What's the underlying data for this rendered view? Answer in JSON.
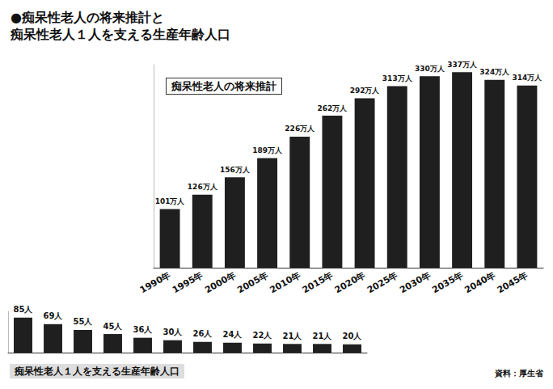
{
  "chart_data": {
    "type": "bar",
    "title": "●痴呆性老人の将来推計と\n痴呆性老人１人を支える生産年齢人口",
    "categories": [
      "1990年",
      "1995年",
      "2000年",
      "2005年",
      "2010年",
      "2015年",
      "2020年",
      "2025年",
      "2030年",
      "2035年",
      "2040年",
      "2045年"
    ],
    "series": [
      {
        "name": "痴呆性老人の将来推計",
        "color": "#1f1f1f",
        "values": [
          101,
          126,
          156,
          189,
          226,
          262,
          292,
          313,
          330,
          337,
          324,
          314
        ],
        "value_labels": [
          "101万人",
          "126万人",
          "156万人",
          "189万人",
          "226万人",
          "262万人",
          "292万人",
          "313万人",
          "330万人",
          "337万人",
          "324万人",
          "314万人"
        ]
      },
      {
        "name": "痴呆性老人１人を支える生産年齢人口",
        "color": "#1f1f1f",
        "axis": "y2",
        "values": [
          85,
          69,
          55,
          45,
          36,
          30,
          26,
          24,
          22,
          21,
          21,
          20
        ],
        "value_labels": [
          "85人",
          "69人",
          "55人",
          "45人",
          "36人",
          "30人",
          "26人",
          "24人",
          "22人",
          "21人",
          "21人",
          "20人"
        ]
      }
    ],
    "ylim": [
      0,
      350
    ],
    "y2lim": [
      0,
      100
    ],
    "tick_labels": "x",
    "data_labels": true,
    "grid": false,
    "note": "資料：厚生省"
  }
}
